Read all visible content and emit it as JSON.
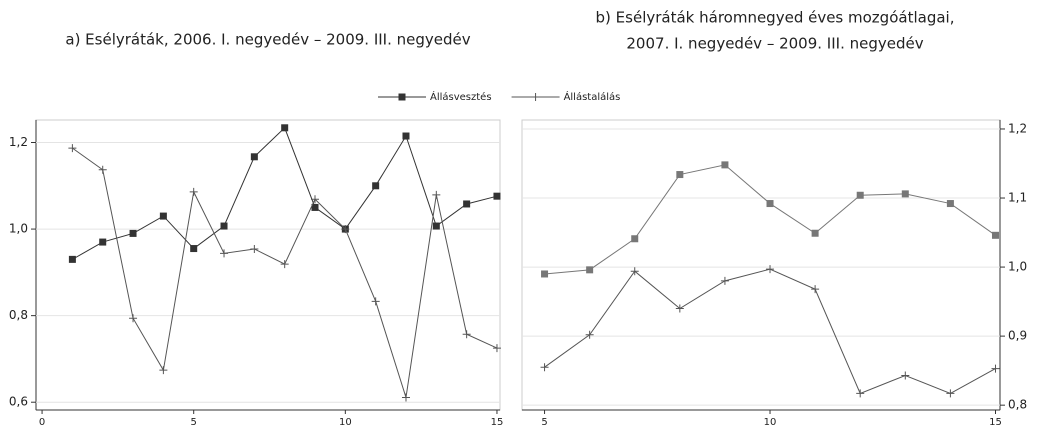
{
  "chart_data": [
    {
      "type": "line",
      "title": [
        "a) Esélyráták, 2006. I. negyedév – 2009. III. negyedév"
      ],
      "x": [
        1,
        2,
        3,
        4,
        5,
        6,
        7,
        8,
        9,
        10,
        11,
        12,
        13,
        14,
        15
      ],
      "series": [
        {
          "name": "Állásvesztés",
          "color": "#333333",
          "marker": "square",
          "values": [
            0.93,
            0.97,
            0.99,
            1.03,
            0.955,
            1.007,
            1.167,
            1.234,
            1.05,
            1.0,
            1.1,
            1.215,
            1.007,
            1.058,
            1.076
          ]
        },
        {
          "name": "Állástalálás",
          "color": "#555555",
          "marker": "plus",
          "values": [
            1.187,
            1.137,
            0.794,
            0.674,
            1.086,
            0.944,
            0.954,
            0.919,
            1.069,
            1.0,
            0.833,
            0.611,
            1.079,
            0.757,
            0.725
          ]
        }
      ],
      "xlim": [
        -0.2,
        15.1
      ],
      "xticks": [
        0,
        5,
        10,
        15
      ],
      "ylim": [
        0.582,
        1.252
      ],
      "yticks": [
        {
          "value": 0.6,
          "label": "0,6"
        },
        {
          "value": 0.8,
          "label": "0,8"
        },
        {
          "value": 1.0,
          "label": "1,0"
        },
        {
          "value": 1.2,
          "label": "1,2"
        }
      ],
      "yaxis_side": "left",
      "grid": true
    },
    {
      "type": "line",
      "title": [
        "b) Esélyráták háromnegyed éves mozgóátlagai,",
        "2007. I. negyedév – 2009. III. negyedév"
      ],
      "x": [
        5,
        6,
        7,
        8,
        9,
        10,
        11,
        12,
        13,
        14,
        15
      ],
      "series": [
        {
          "color": "#777777",
          "marker": "square",
          "values": [
            0.99,
            0.996,
            1.041,
            1.134,
            1.148,
            1.092,
            1.049,
            1.104,
            1.106,
            1.092,
            1.046
          ]
        },
        {
          "color": "#555555",
          "marker": "plus",
          "values": [
            0.855,
            0.902,
            0.994,
            0.94,
            0.98,
            0.997,
            0.968,
            0.817,
            0.843,
            0.817,
            0.853
          ]
        }
      ],
      "xlim": [
        4.5,
        15.1
      ],
      "xticks": [
        5,
        10,
        15
      ],
      "ylim": [
        0.793,
        1.213
      ],
      "yticks": [
        {
          "value": 0.8,
          "label": "0,8"
        },
        {
          "value": 0.9,
          "label": "0,9"
        },
        {
          "value": 1.0,
          "label": "1,0"
        },
        {
          "value": 1.1,
          "label": "1,1"
        },
        {
          "value": 1.2,
          "label": "1,2"
        }
      ],
      "yaxis_side": "right",
      "grid": true
    }
  ]
}
